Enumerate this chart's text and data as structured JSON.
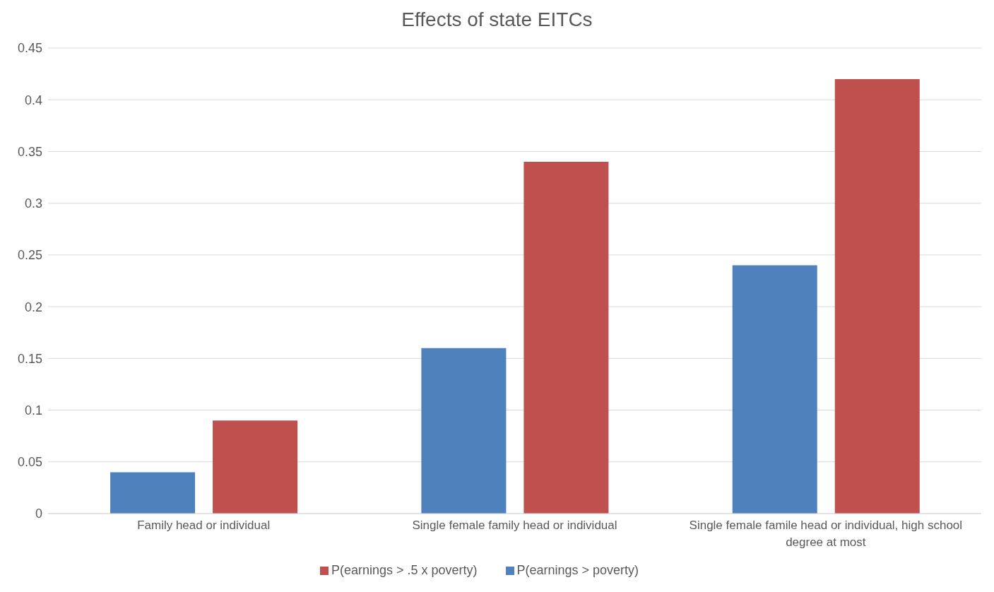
{
  "chart_data": {
    "type": "bar",
    "title": "Effects of state EITCs",
    "categories": [
      "Family head or individual",
      "Single female family head or individual",
      "Single female famile head or individual, high school degree at most"
    ],
    "series": [
      {
        "name": "P(earnings > poverty)",
        "color": "#4f81bd",
        "values": [
          0.04,
          0.16,
          0.24
        ]
      },
      {
        "name": "P(earnings > .5 x poverty)",
        "color": "#c0504d",
        "values": [
          0.09,
          0.34,
          0.42
        ]
      }
    ],
    "ylim": [
      0,
      0.45
    ],
    "yticks": [
      0,
      0.05,
      0.1,
      0.15,
      0.2,
      0.25,
      0.3,
      0.35,
      0.4,
      0.45
    ],
    "grid": "y",
    "legend": "bottom"
  }
}
